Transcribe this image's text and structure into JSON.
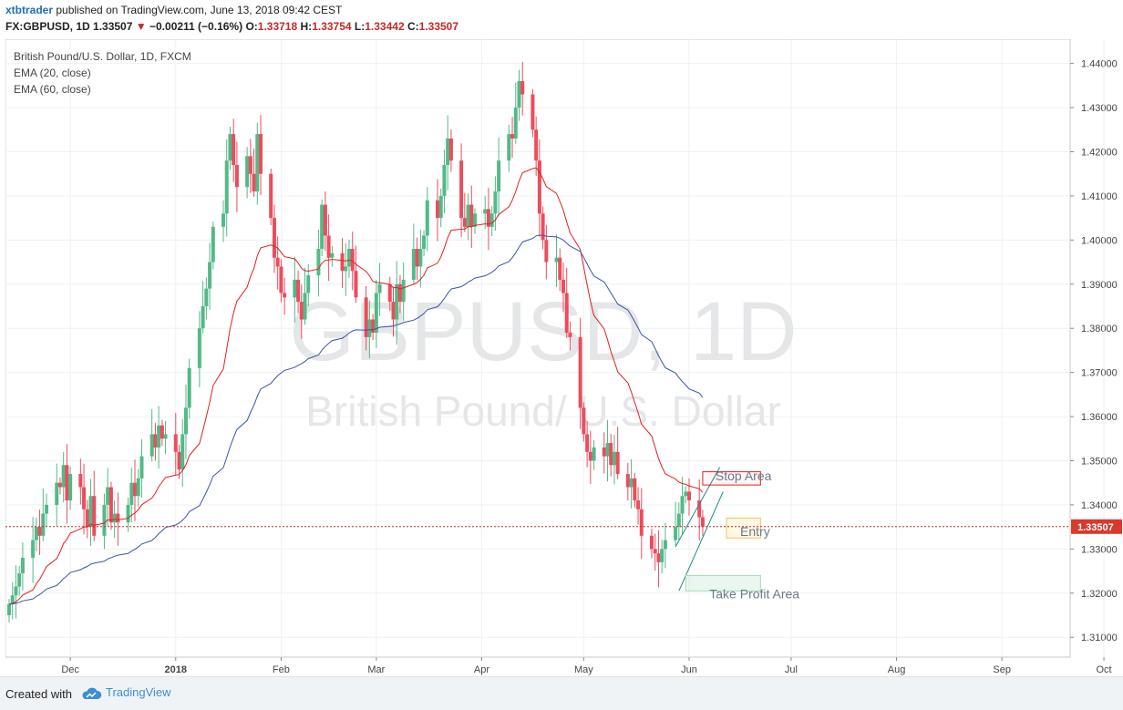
{
  "header": {
    "author": "xtbtrader",
    "published_text": "published on TradingView.com, June 13, 2018 09:42 CEST",
    "symbol": "FX:GBPUSD, 1D",
    "last": "1.33507",
    "change": "−0.00211 (−0.16%)",
    "o_label": "O:",
    "o": "1.33718",
    "h_label": "H:",
    "h": "1.33754",
    "l_label": "L:",
    "l": "1.33442",
    "c_label": "C:",
    "c": "1.33507"
  },
  "legend": {
    "title": "British Pound/U.S. Dollar, 1D, FXCM",
    "ema20": "EMA (20, close)",
    "ema60": "EMA (60, close)"
  },
  "watermark": {
    "line1": "GBPUSD, 1D",
    "line2": "British Pound/ U.S. Dollar"
  },
  "footer": {
    "created": "Created with",
    "brand": "TradingView"
  },
  "colors": {
    "up": "#53b987",
    "down": "#eb4d5c",
    "ema20": "#e02020",
    "ema60": "#3a55a4",
    "price_line": "#c62828",
    "last_badge": "#d8392b"
  },
  "chart_data": {
    "type": "candlestick",
    "timeframe": "1D",
    "ylim": [
      1.3055,
      1.4455
    ],
    "y_ticks": [
      "1.31000",
      "1.32000",
      "1.33000",
      "1.34000",
      "1.35000",
      "1.36000",
      "1.37000",
      "1.38000",
      "1.39000",
      "1.40000",
      "1.41000",
      "1.42000",
      "1.43000",
      "1.44000"
    ],
    "x_ticks": [
      "Dec",
      "2018",
      "Feb",
      "Mar",
      "Apr",
      "May",
      "Jun",
      "Jul",
      "Aug",
      "Sep",
      "Oct"
    ],
    "last_price": 1.33507,
    "last_price_label": "1.33507",
    "start_date": "2017-11-13",
    "closes": [
      1.3175,
      1.3195,
      1.3215,
      1.3245,
      1.328,
      1.332,
      1.335,
      1.333,
      1.338,
      1.34,
      1.345,
      1.344,
      1.349,
      1.341,
      1.347,
      1.344,
      1.339,
      1.335,
      1.342,
      1.333,
      1.34,
      1.344,
      1.336,
      1.338,
      1.336,
      1.34,
      1.345,
      1.342,
      1.346,
      1.351,
      1.356,
      1.353,
      1.358,
      1.355,
      1.356,
      1.352,
      1.348,
      1.356,
      1.362,
      1.371,
      1.38,
      1.385,
      1.389,
      1.395,
      1.403,
      1.406,
      1.418,
      1.424,
      1.417,
      1.412,
      1.419,
      1.415,
      1.411,
      1.424,
      1.415,
      1.405,
      1.396,
      1.394,
      1.388,
      1.387,
      1.391,
      1.386,
      1.382,
      1.388,
      1.392,
      1.398,
      1.408,
      1.401,
      1.396,
      1.397,
      1.393,
      1.394,
      1.398,
      1.393,
      1.387,
      1.378,
      1.382,
      1.379,
      1.388,
      1.39,
      1.386,
      1.382,
      1.39,
      1.386,
      1.391,
      1.398,
      1.394,
      1.398,
      1.401,
      1.409,
      1.405,
      1.41,
      1.417,
      1.423,
      1.418,
      1.405,
      1.403,
      1.408,
      1.403,
      1.406,
      1.407,
      1.403,
      1.406,
      1.411,
      1.418,
      1.424,
      1.423,
      1.43,
      1.436,
      1.433,
      1.425,
      1.418,
      1.406,
      1.4,
      1.395,
      1.396,
      1.391,
      1.388,
      1.379,
      1.378,
      1.362,
      1.356,
      1.352,
      1.35,
      1.353,
      1.351,
      1.354,
      1.349,
      1.352,
      1.347,
      1.344,
      1.346,
      1.341,
      1.339,
      1.333,
      1.33,
      1.329,
      1.327,
      1.33,
      1.332,
      1.335,
      1.338,
      1.342,
      1.343,
      1.341,
      1.3372,
      1.3351
    ],
    "series": [
      {
        "name": "EMA (20, close)",
        "period": 20
      },
      {
        "name": "EMA (60, close)",
        "period": 60
      }
    ],
    "annotations": {
      "stop": {
        "label": "Stop Area",
        "from": 1.3445,
        "to": 1.3475
      },
      "entry": {
        "label": "Entry",
        "from": 1.3325,
        "to": 1.337
      },
      "take_profit": {
        "label": "Take Profit Area",
        "from": 1.3205,
        "to": 1.324
      }
    }
  }
}
